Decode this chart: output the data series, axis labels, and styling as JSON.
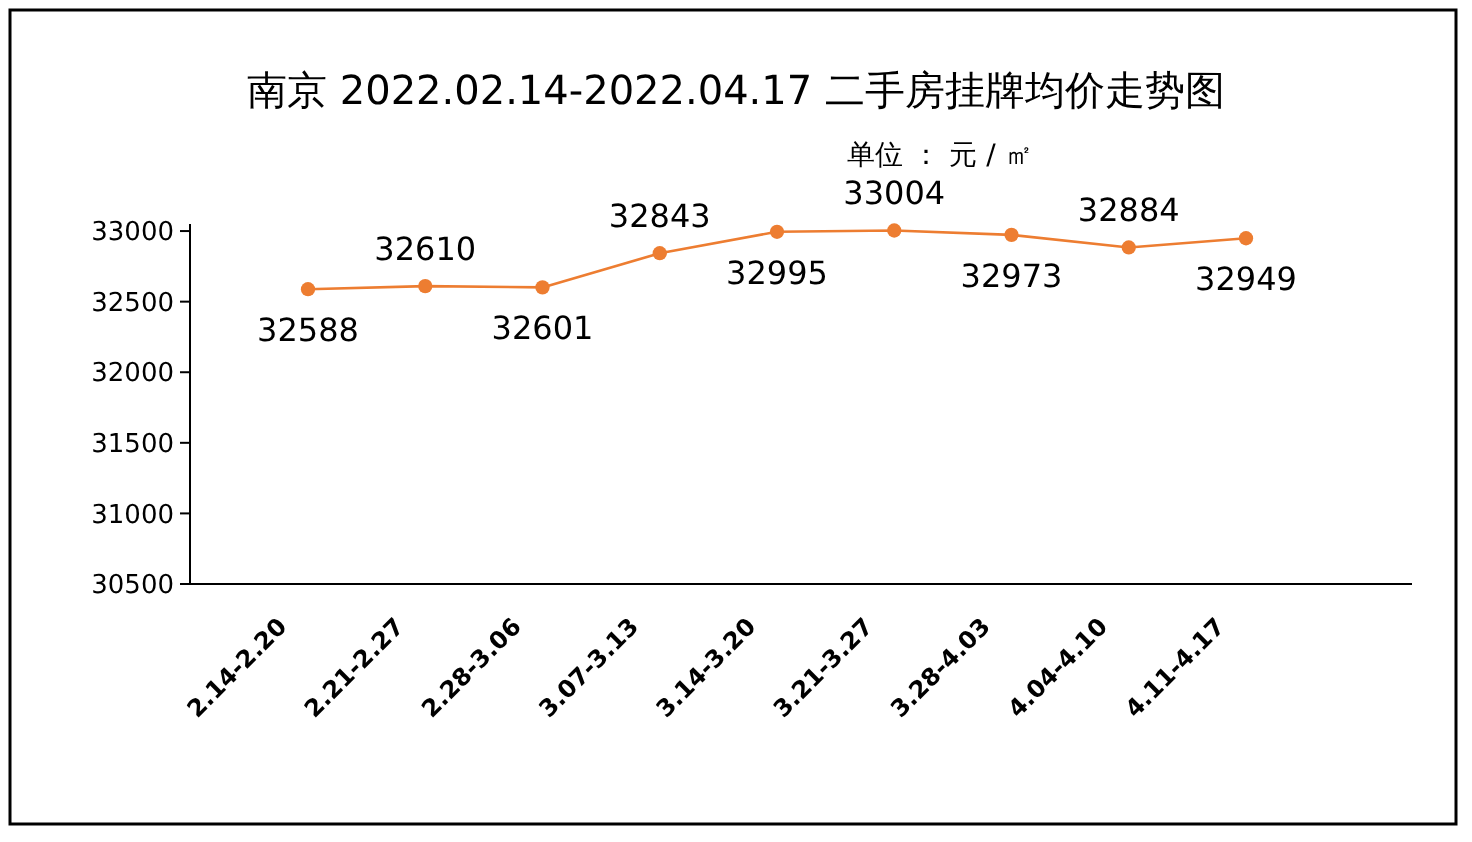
{
  "chart_data": {
    "type": "line",
    "title": "南京 2022.02.14-2022.04.17 二手房挂牌均价走势图",
    "subtitle": "单位 ： 元 / ㎡",
    "categories": [
      "2.14-2.20",
      "2.21-2.27",
      "2.28-3.06",
      "3.07-3.13",
      "3.14-3.20",
      "3.21-3.27",
      "3.28-4.03",
      "4.04-4.10",
      "4.11-4.17"
    ],
    "series": [
      {
        "color": "#ed7d31",
        "values": [
          32588,
          32610,
          32601,
          32843,
          32995,
          33004,
          32973,
          32884,
          32949
        ]
      }
    ],
    "data_labels": true,
    "ylim": [
      30500,
      33050
    ],
    "yticks": [
      30500,
      31000,
      31500,
      32000,
      32500,
      33000
    ],
    "grid": false,
    "marker": "circle",
    "line_style": "solid"
  }
}
